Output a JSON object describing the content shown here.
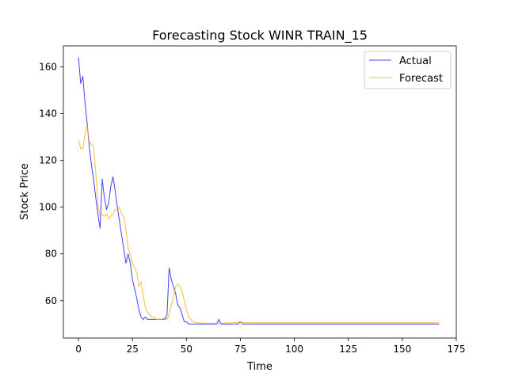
{
  "chart_data": {
    "type": "line",
    "title": "Forecasting Stock WINR TRAIN_15",
    "xlabel": "Time",
    "ylabel": "Stock Price",
    "xlim": [
      -7,
      175
    ],
    "ylim": [
      44,
      169
    ],
    "xticks": [
      0,
      25,
      50,
      75,
      100,
      125,
      150,
      175
    ],
    "yticks": [
      60,
      80,
      100,
      120,
      140,
      160
    ],
    "grid": false,
    "legend": "top-right",
    "series": [
      {
        "name": "Actual",
        "color": "#0000ff",
        "points": [
          [
            0,
            164
          ],
          [
            1,
            153
          ],
          [
            2,
            156
          ],
          [
            3,
            145
          ],
          [
            4,
            136
          ],
          [
            5,
            126
          ],
          [
            6,
            118
          ],
          [
            7,
            112
          ],
          [
            8,
            104
          ],
          [
            9,
            97
          ],
          [
            10,
            91
          ],
          [
            11,
            112
          ],
          [
            12,
            104
          ],
          [
            13,
            99
          ],
          [
            14,
            102
          ],
          [
            15,
            109
          ],
          [
            16,
            113
          ],
          [
            17,
            107
          ],
          [
            18,
            100
          ],
          [
            19,
            94
          ],
          [
            20,
            88
          ],
          [
            21,
            82
          ],
          [
            22,
            76
          ],
          [
            23,
            80
          ],
          [
            24,
            76
          ],
          [
            25,
            69
          ],
          [
            26,
            65
          ],
          [
            27,
            61
          ],
          [
            28,
            56
          ],
          [
            29,
            53
          ],
          [
            30,
            52
          ],
          [
            31,
            53
          ],
          [
            32,
            52
          ],
          [
            33,
            52
          ],
          [
            34,
            52
          ],
          [
            35,
            52
          ],
          [
            36,
            52
          ],
          [
            37,
            52
          ],
          [
            38,
            52
          ],
          [
            39,
            52
          ],
          [
            40,
            52
          ],
          [
            41,
            54
          ],
          [
            42,
            74
          ],
          [
            43,
            69
          ],
          [
            44,
            66
          ],
          [
            45,
            63
          ],
          [
            46,
            58
          ],
          [
            47,
            57
          ],
          [
            48,
            54
          ],
          [
            49,
            51
          ],
          [
            50,
            51
          ],
          [
            51,
            50
          ],
          [
            55,
            50
          ],
          [
            60,
            50
          ],
          [
            64,
            50
          ],
          [
            65,
            52
          ],
          [
            66,
            50
          ],
          [
            70,
            50
          ],
          [
            74,
            50
          ],
          [
            75,
            51
          ],
          [
            76,
            50
          ],
          [
            80,
            50
          ],
          [
            100,
            50
          ],
          [
            125,
            50
          ],
          [
            150,
            50
          ],
          [
            167,
            50
          ]
        ]
      },
      {
        "name": "Forecast",
        "color": "#ffa500",
        "points": [
          [
            0,
            129
          ],
          [
            1,
            125
          ],
          [
            2,
            125
          ],
          [
            3,
            131
          ],
          [
            4,
            135
          ],
          [
            5,
            128
          ],
          [
            6,
            127
          ],
          [
            7,
            126
          ],
          [
            8,
            115
          ],
          [
            9,
            101
          ],
          [
            10,
            96
          ],
          [
            11,
            97
          ],
          [
            12,
            96
          ],
          [
            13,
            97
          ],
          [
            14,
            95
          ],
          [
            15,
            96
          ],
          [
            16,
            97
          ],
          [
            17,
            99
          ],
          [
            18,
            99
          ],
          [
            19,
            100
          ],
          [
            20,
            97
          ],
          [
            21,
            96
          ],
          [
            22,
            90
          ],
          [
            23,
            82
          ],
          [
            24,
            80
          ],
          [
            25,
            76
          ],
          [
            26,
            74
          ],
          [
            27,
            72
          ],
          [
            28,
            66
          ],
          [
            29,
            68
          ],
          [
            30,
            62
          ],
          [
            31,
            57
          ],
          [
            32,
            55
          ],
          [
            33,
            54
          ],
          [
            34,
            53
          ],
          [
            35,
            53
          ],
          [
            36,
            52
          ],
          [
            37,
            52
          ],
          [
            38,
            52
          ],
          [
            39,
            52
          ],
          [
            40,
            53
          ],
          [
            41,
            52
          ],
          [
            42,
            54
          ],
          [
            43,
            58
          ],
          [
            44,
            62
          ],
          [
            45,
            66
          ],
          [
            46,
            67
          ],
          [
            47,
            66
          ],
          [
            48,
            64
          ],
          [
            49,
            60
          ],
          [
            50,
            56
          ],
          [
            51,
            53
          ],
          [
            52,
            52
          ],
          [
            53,
            51
          ],
          [
            55,
            50.5
          ],
          [
            60,
            50.3
          ],
          [
            65,
            50.3
          ],
          [
            70,
            50.5
          ],
          [
            74,
            50.7
          ],
          [
            75,
            51
          ],
          [
            76,
            50.6
          ],
          [
            80,
            50.5
          ],
          [
            100,
            50.5
          ],
          [
            125,
            50.5
          ],
          [
            150,
            50.5
          ],
          [
            167,
            50.5
          ]
        ]
      }
    ]
  }
}
